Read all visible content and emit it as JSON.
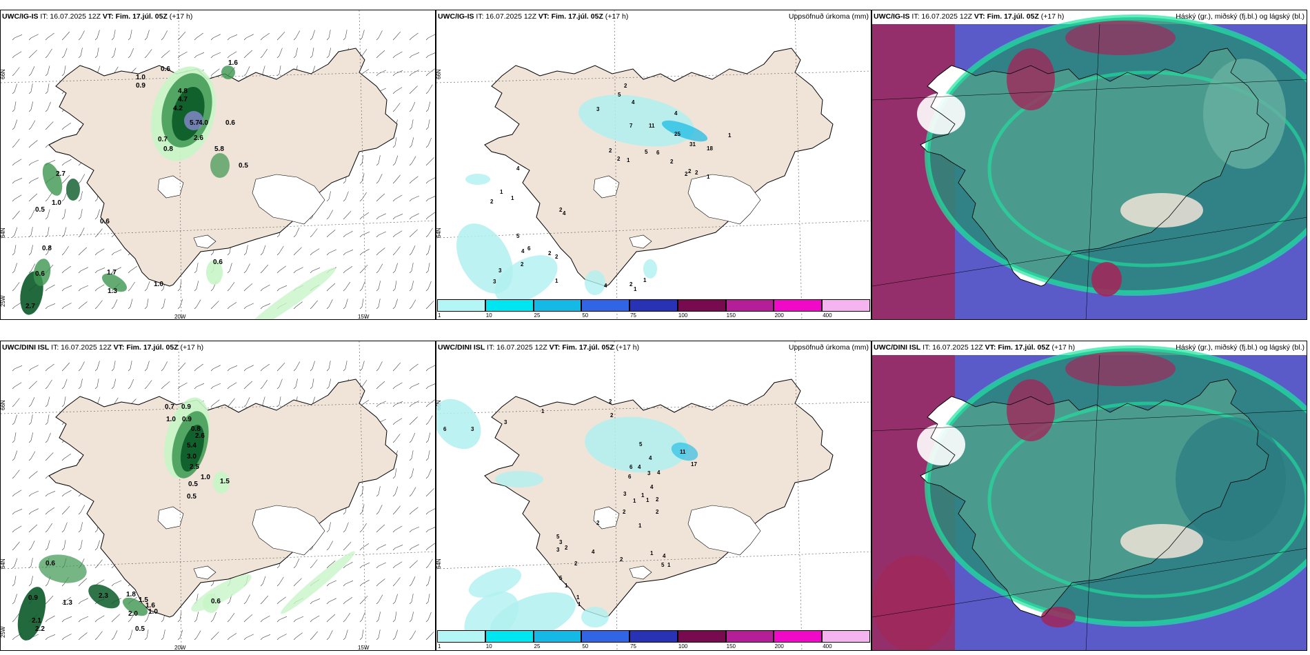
{
  "panels": {
    "top_left": {
      "model": "UWC/IG-IS",
      "it": "IT: 16.07.2025 12Z",
      "vt": "VT: Fim. 17.júl. 05Z",
      "lead": "(+17 h)",
      "axis": {
        "lat1": "66N",
        "lat2": "64N",
        "lon1": "25W",
        "lon2": "20W",
        "lon3": "15W"
      },
      "values": [
        "0.6",
        "1.0",
        "0.9",
        "4.8",
        "4.7",
        "4.2",
        "5.7",
        "4.0",
        "0.6",
        "0.7",
        "0.8",
        "2.6",
        "5.8",
        "0.5",
        "2.7",
        "1.0",
        "0.5",
        "0.6",
        "0.8",
        "0.6",
        "1.7",
        "1.3",
        "1.0",
        "0.6",
        "2.7",
        "1.6"
      ]
    },
    "top_mid": {
      "model": "UWC/IG-IS",
      "it": "IT: 16.07.2025 12Z",
      "vt": "VT: Fim. 17.júl. 05Z",
      "lead": "(+17 h)",
      "title_right": "Uppsöfnuð úrkoma (mm)",
      "axis": {
        "lat1": "66N",
        "lat2": "64N"
      },
      "values": [
        "2",
        "5",
        "4",
        "3",
        "7",
        "11",
        "4",
        "25",
        "31",
        "18",
        "1",
        "2",
        "2",
        "1",
        "5",
        "6",
        "2",
        "2",
        "2",
        "2",
        "1",
        "4",
        "1",
        "2",
        "1",
        "2",
        "4",
        "5",
        "6",
        "2",
        "2",
        "4",
        "2",
        "3",
        "3",
        "1",
        "4",
        "2",
        "1",
        "1"
      ]
    },
    "top_right": {
      "model": "UWC/IG-IS",
      "it": "IT: 16.07.2025 12Z",
      "vt": "VT: Fim. 17.júl. 05Z",
      "lead": "(+17 h)",
      "title_right": "Háský (gr.), miðský (fj.bl.) og lágský (bl.)"
    },
    "bottom_left": {
      "model": "UWC/DINI ISL",
      "it": "IT: 16.07.2025 12Z",
      "vt": "VT: Fim. 17.júl. 05Z",
      "lead": "(+17 h)",
      "axis": {
        "lat1": "66N",
        "lat2": "64N",
        "lon1": "25W",
        "lon2": "20W",
        "lon3": "15W"
      },
      "values": [
        "0.7",
        "0.9",
        "1.0",
        "0.9",
        "0.8",
        "2.6",
        "5.4",
        "3.0",
        "2.5",
        "1.0",
        "0.5",
        "1.5",
        "0.5",
        "0.6",
        "0.9",
        "1.3",
        "2.3",
        "1.8",
        "1.5",
        "1.6",
        "1.0",
        "2.1",
        "2.2",
        "2.0",
        "0.5",
        "0.6"
      ]
    },
    "bottom_mid": {
      "model": "UWC/DINI ISL",
      "it": "IT: 16.07.2025 12Z",
      "vt": "VT: Fim. 17.júl. 05Z",
      "lead": "(+17 h)",
      "title_right": "Uppsöfnuð úrkoma (mm)",
      "axis": {
        "lat1": "66N",
        "lat2": "64N"
      },
      "values": [
        "6",
        "3",
        "3",
        "1",
        "2",
        "2",
        "5",
        "4",
        "11",
        "17",
        "6",
        "4",
        "6",
        "3",
        "4",
        "4",
        "3",
        "1",
        "1",
        "1",
        "2",
        "2",
        "2",
        "1",
        "2",
        "1",
        "4",
        "5",
        "5",
        "3",
        "3",
        "2",
        "2",
        "4",
        "2",
        "1",
        "5",
        "1",
        "1",
        "1"
      ]
    },
    "bottom_right": {
      "model": "UWC/DINI ISL",
      "it": "IT: 16.07.2025 12Z",
      "vt": "VT: Fim. 17.júl. 05Z",
      "lead": "(+17 h)",
      "title_right": "Háský (gr.), miðský (fj.bl.) og lágský (bl.)"
    }
  },
  "colorbar": {
    "ticks": [
      "1",
      "10",
      "25",
      "50",
      "75",
      "100",
      "150",
      "200",
      "400"
    ],
    "colors": [
      "#b4f5f5",
      "#00e6f0",
      "#14b9e6",
      "#3264e6",
      "#2832b4",
      "#780a50",
      "#b41e96",
      "#f00ac8",
      "#f5b4f0"
    ]
  },
  "colors": {
    "land": "#f0e4d8",
    "precip_light": "#c8f5c8",
    "precip_mid": "#3c9650",
    "precip_dark": "#0a5a28",
    "sea_precip": "#b0f0f0",
    "low_cloud": "#5a5ac8",
    "mid_cloud": "#2a8a7a",
    "high_cloud": "#a0285a"
  }
}
